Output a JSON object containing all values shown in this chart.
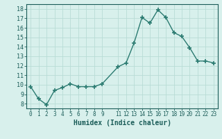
{
  "x": [
    0,
    1,
    2,
    3,
    4,
    5,
    6,
    7,
    8,
    9,
    11,
    12,
    13,
    14,
    15,
    16,
    17,
    18,
    19,
    20,
    21,
    22,
    23
  ],
  "y": [
    9.8,
    8.5,
    7.9,
    9.4,
    9.7,
    10.1,
    9.8,
    9.8,
    9.8,
    10.1,
    11.9,
    12.3,
    14.4,
    17.1,
    16.5,
    17.9,
    17.1,
    15.5,
    15.1,
    13.9,
    12.5,
    12.5,
    12.3
  ],
  "line_color": "#2a7a70",
  "marker": "+",
  "marker_size": 4,
  "marker_lw": 1.2,
  "bg_color": "#d8f0ec",
  "grid_color": "#b8dcd6",
  "xlabel": "Humidex (Indice chaleur)",
  "ylim": [
    7.5,
    18.5
  ],
  "xlim": [
    -0.5,
    23.5
  ],
  "yticks": [
    8,
    9,
    10,
    11,
    12,
    13,
    14,
    15,
    16,
    17,
    18
  ],
  "xticks": [
    0,
    1,
    2,
    3,
    4,
    5,
    6,
    7,
    8,
    9,
    11,
    12,
    13,
    14,
    15,
    16,
    17,
    18,
    19,
    20,
    21,
    22,
    23
  ],
  "xtick_labels": [
    "0",
    "1",
    "2",
    "3",
    "4",
    "5",
    "6",
    "7",
    "8",
    "9",
    "11",
    "12",
    "13",
    "14",
    "15",
    "16",
    "17",
    "18",
    "19",
    "20",
    "21",
    "22",
    "23"
  ],
  "tick_color": "#1a5c58",
  "label_color": "#1a5c58",
  "tick_fontsize": 5.5,
  "ylabel_fontsize": 6.0,
  "xlabel_fontsize": 7.0,
  "line_width": 1.0
}
